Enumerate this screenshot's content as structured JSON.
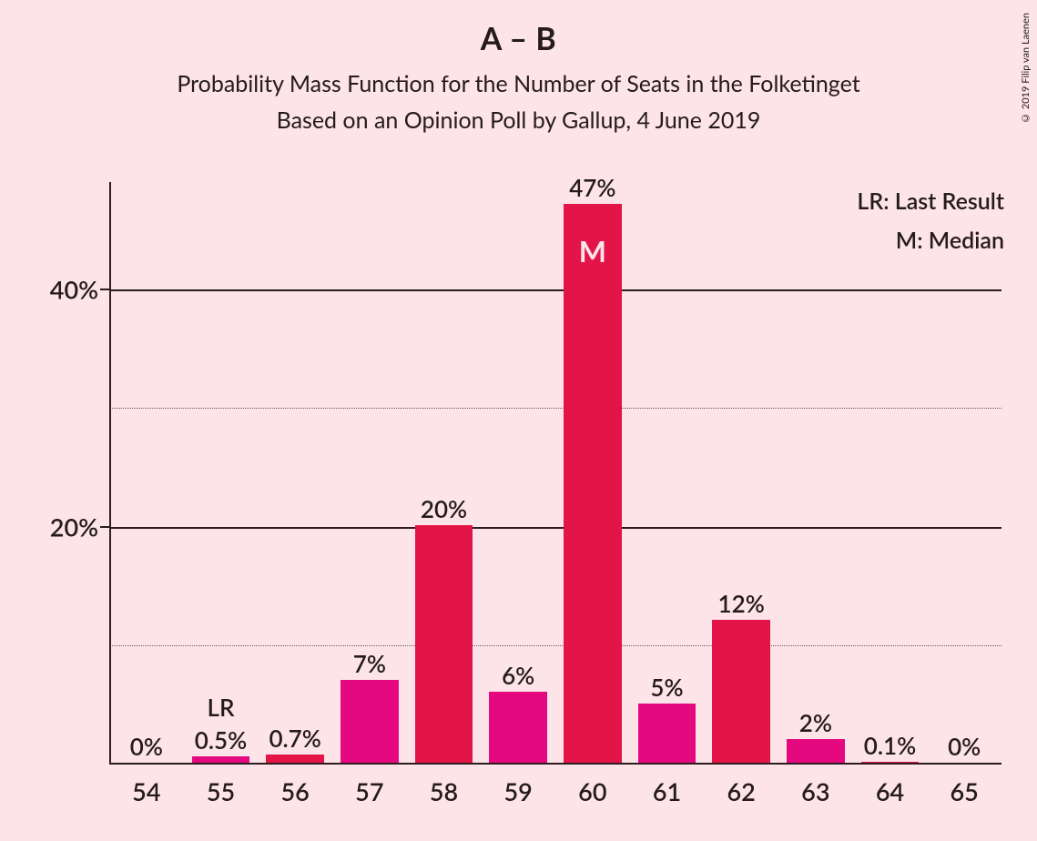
{
  "background_color": "#fce4e8",
  "text_color": "#251a1c",
  "title": {
    "main": "A – B",
    "sub1": "Probability Mass Function for the Number of Seats in the Folketinget",
    "sub2": "Based on an Opinion Poll by Gallup, 4 June 2019",
    "main_fontsize": 34,
    "sub_fontsize": 25
  },
  "legend": {
    "lr": "LR: Last Result",
    "m": "M: Median",
    "fontsize": 25
  },
  "chart": {
    "type": "bar",
    "y_axis": {
      "min": 0,
      "max": 49,
      "major_ticks": [
        20,
        40
      ],
      "minor_ticks": [
        10,
        30
      ],
      "label_format_suffix": "%"
    },
    "categories": [
      54,
      55,
      56,
      57,
      58,
      59,
      60,
      61,
      62,
      63,
      64,
      65
    ],
    "values": [
      0,
      0.5,
      0.7,
      7,
      20,
      6,
      47,
      5,
      12,
      2,
      0.1,
      0
    ],
    "value_labels": [
      "0%",
      "0.5%",
      "0.7%",
      "7%",
      "20%",
      "6%",
      "47%",
      "5%",
      "12%",
      "2%",
      "0.1%",
      "0%"
    ],
    "bar_width_ratio": 0.78,
    "colors": {
      "even": "#e31448",
      "odd": "#e5097f"
    },
    "annotations": {
      "last_result_index": 1,
      "last_result_label": "LR",
      "median_index": 6,
      "median_label": "M"
    },
    "grid_color": "#2b1d1f"
  },
  "copyright": "© 2019 Filip van Laenen"
}
